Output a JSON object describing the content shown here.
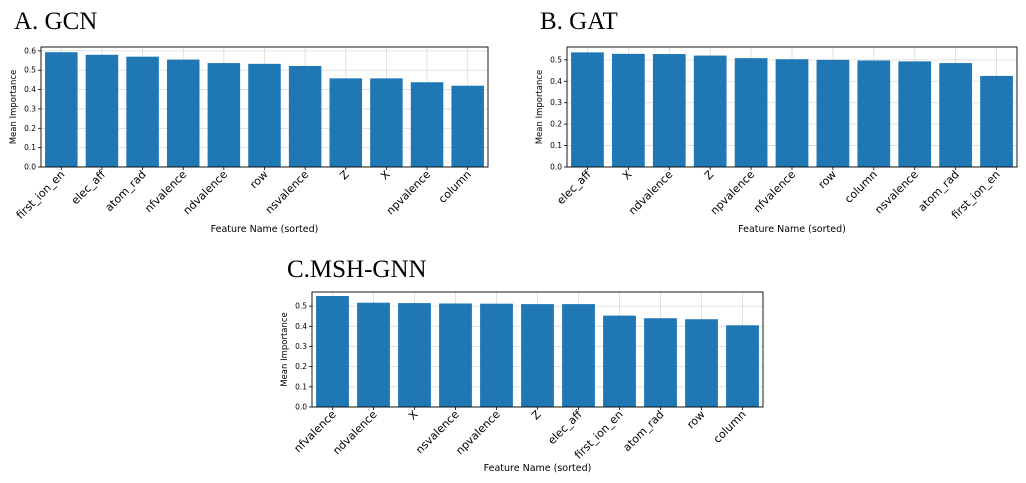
{
  "panels": [
    {
      "title": "A. GCN"
    },
    {
      "title": "B. GAT"
    },
    {
      "title": "C.MSH-GNN"
    }
  ],
  "colors": {
    "bar": "#1f77b4",
    "grid": "#d9d9d9",
    "axis": "#000000"
  },
  "chart_data": [
    {
      "type": "bar",
      "title": "A. GCN",
      "xlabel": "Feature Name (sorted)",
      "ylabel": "Mean Importance",
      "ylim": [
        0,
        0.62
      ],
      "yticks": [
        "0.0",
        "0.1",
        "0.2",
        "0.3",
        "0.4",
        "0.5",
        "0.6"
      ],
      "grid": true,
      "categories": [
        "first_ion_en",
        "elec_aff",
        "atom_rad",
        "nfvalence",
        "ndvalence",
        "row",
        "nsvalence",
        "Z",
        "X",
        "npvalence",
        "column"
      ],
      "values": [
        0.593,
        0.58,
        0.57,
        0.555,
        0.537,
        0.533,
        0.522,
        0.458,
        0.458,
        0.438,
        0.42
      ]
    },
    {
      "type": "bar",
      "title": "B. GAT",
      "xlabel": "Feature Name (sorted)",
      "ylabel": "Mean Importance",
      "ylim": [
        0,
        0.56
      ],
      "yticks": [
        "0.0",
        "0.1",
        "0.2",
        "0.3",
        "0.4",
        "0.5"
      ],
      "grid": true,
      "categories": [
        "elec_aff",
        "X",
        "ndvalence",
        "Z",
        "npvalence",
        "nfvalence",
        "row",
        "column",
        "nsvalence",
        "atom_rad",
        "first_ion_en"
      ],
      "values": [
        0.535,
        0.528,
        0.527,
        0.52,
        0.508,
        0.503,
        0.5,
        0.497,
        0.493,
        0.485,
        0.425
      ]
    },
    {
      "type": "bar",
      "title": "C.MSH-GNN",
      "xlabel": "Feature Name (sorted)",
      "ylabel": "Mean Importance",
      "ylim": [
        0,
        0.57
      ],
      "yticks": [
        "0.0",
        "0.1",
        "0.2",
        "0.3",
        "0.4",
        "0.5"
      ],
      "grid": true,
      "categories": [
        "nfvalence",
        "ndvalence",
        "X",
        "nsvalence",
        "npvalence",
        "Z",
        "elec_aff",
        "first_ion_en",
        "atom_rad",
        "row",
        "column"
      ],
      "values": [
        0.55,
        0.517,
        0.515,
        0.513,
        0.512,
        0.51,
        0.51,
        0.453,
        0.44,
        0.435,
        0.405
      ]
    }
  ]
}
